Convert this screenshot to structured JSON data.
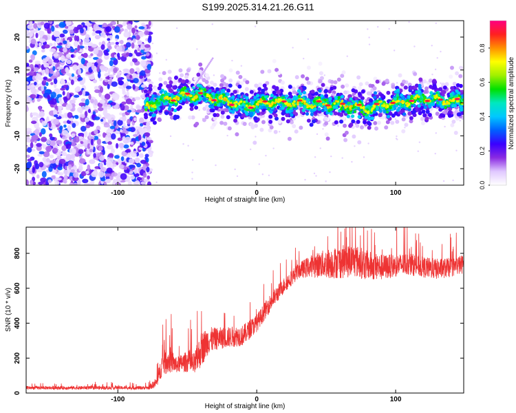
{
  "title": "S199.2025.314.21.26.G11",
  "chart_data": [
    {
      "type": "heatmap",
      "xlabel": "Height of straight line (km)",
      "ylabel": "Frequency (Hz)",
      "xlim": [
        -166,
        149
      ],
      "ylim": [
        -25,
        25
      ],
      "x_ticks": [
        -100,
        0,
        100
      ],
      "x_tick_labels": [
        "-100",
        "0",
        "100"
      ],
      "y_ticks": [
        -20,
        -10,
        0,
        10,
        20
      ],
      "y_tick_labels": [
        "-20",
        "-10",
        "0",
        "10",
        "20"
      ],
      "noise_region_x": [
        -166,
        -76
      ],
      "ridge_x": [
        -80,
        -70,
        -60,
        -50,
        -40,
        -30,
        -20,
        -10,
        0,
        10,
        20,
        30,
        40,
        50,
        60,
        70,
        80,
        90,
        100,
        110,
        120,
        130,
        140,
        149
      ],
      "ridge_freq": [
        -1.5,
        0.5,
        1.5,
        2.5,
        2.5,
        1.5,
        0.5,
        -1.0,
        -0.5,
        0.5,
        0.0,
        0.0,
        -0.5,
        0.0,
        -0.5,
        -1.0,
        -2.0,
        -0.5,
        0.0,
        0.5,
        1.5,
        1.0,
        0.5,
        0.5
      ],
      "colorbar": {
        "label": "Normalized spectral amplitude",
        "ticks": [
          0.0,
          0.2,
          0.4,
          0.6,
          0.8
        ],
        "tick_labels": [
          "0.0",
          "0.2",
          "0.4",
          "0.6",
          "0.8"
        ],
        "range": [
          0,
          0.96
        ],
        "colors": [
          "#ffffff",
          "#e0c8ff",
          "#8a2be2",
          "#3a00ff",
          "#0060ff",
          "#00c8ff",
          "#00e8c0",
          "#00e000",
          "#a0f000",
          "#ffff00",
          "#ff9000",
          "#ff2020",
          "#ff0080"
        ]
      }
    },
    {
      "type": "line",
      "xlabel": "Height of straight line (km)",
      "ylabel": "SNR (10 * v/v)",
      "xlim": [
        -166,
        149
      ],
      "ylim": [
        0,
        950
      ],
      "x_ticks": [
        -100,
        0,
        100
      ],
      "x_tick_labels": [
        "-100",
        "0",
        "100"
      ],
      "y_ticks": [
        0,
        200,
        400,
        600,
        800
      ],
      "y_tick_labels": [
        "0",
        "200",
        "400",
        "600",
        "800"
      ],
      "line_color": "#ee3333",
      "x": [
        -166,
        -100,
        -78,
        -72,
        -68,
        -62,
        -58,
        -50,
        -45,
        -40,
        -35,
        -30,
        -20,
        -10,
        0,
        10,
        20,
        30,
        40,
        50,
        60,
        70,
        80,
        90,
        100,
        110,
        120,
        130,
        140,
        149
      ],
      "snr": [
        30,
        30,
        30,
        60,
        170,
        190,
        160,
        180,
        160,
        250,
        300,
        310,
        320,
        330,
        400,
        520,
        620,
        700,
        730,
        740,
        750,
        760,
        730,
        720,
        730,
        740,
        720,
        710,
        720,
        740
      ],
      "snr_spread": [
        20,
        20,
        20,
        60,
        140,
        150,
        90,
        120,
        140,
        200,
        160,
        130,
        120,
        120,
        100,
        100,
        90,
        90,
        130,
        170,
        190,
        190,
        170,
        150,
        130,
        130,
        120,
        120,
        110,
        110
      ]
    }
  ]
}
